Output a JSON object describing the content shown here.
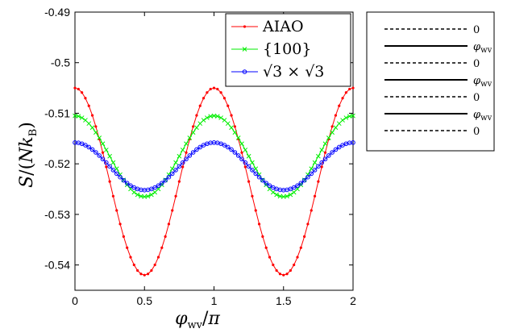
{
  "chart_data": {
    "type": "line",
    "title": "",
    "xlabel": "φ_wv/π",
    "ylabel": "S/(N k_B)",
    "xlim": [
      0,
      2
    ],
    "ylim": [
      -0.545,
      -0.49
    ],
    "xticks": [
      "0",
      "0.5",
      "1",
      "1.5",
      "2"
    ],
    "yticks": [
      "-0.49",
      "-0.5",
      "-0.51",
      "-0.52",
      "-0.53",
      "-0.54"
    ],
    "grid": false,
    "legend_position": "top-right",
    "series": [
      {
        "name": "AIAO",
        "color": "#ff0000",
        "marker": "dot",
        "mean": -0.5235,
        "amplitude": 0.0185,
        "period": 1,
        "min_x": [
          0.5,
          1.5
        ],
        "max_x": [
          0,
          1,
          2
        ]
      },
      {
        "name": "{100}",
        "color": "#00ee00",
        "marker": "x",
        "mean": -0.5185,
        "amplitude": 0.008,
        "period": 1,
        "min_x": [
          0.5,
          1.5
        ],
        "max_x": [
          0,
          1,
          2
        ]
      },
      {
        "name": "√3 × √3",
        "color": "#0000ff",
        "marker": "circle",
        "mean": -0.5205,
        "amplitude": 0.0047,
        "period": 1,
        "min_x": [
          0.5,
          1.5
        ],
        "max_x": [
          0,
          1,
          2
        ]
      }
    ]
  },
  "side_legend": [
    {
      "style": "dashed",
      "label": "0"
    },
    {
      "style": "solid",
      "label": "φ_wv"
    },
    {
      "style": "dashed",
      "label": "0"
    },
    {
      "style": "solid",
      "label": "φ_wv"
    },
    {
      "style": "dashed",
      "label": "0"
    },
    {
      "style": "solid",
      "label": "φ_wv"
    },
    {
      "style": "dashed",
      "label": "0"
    }
  ]
}
